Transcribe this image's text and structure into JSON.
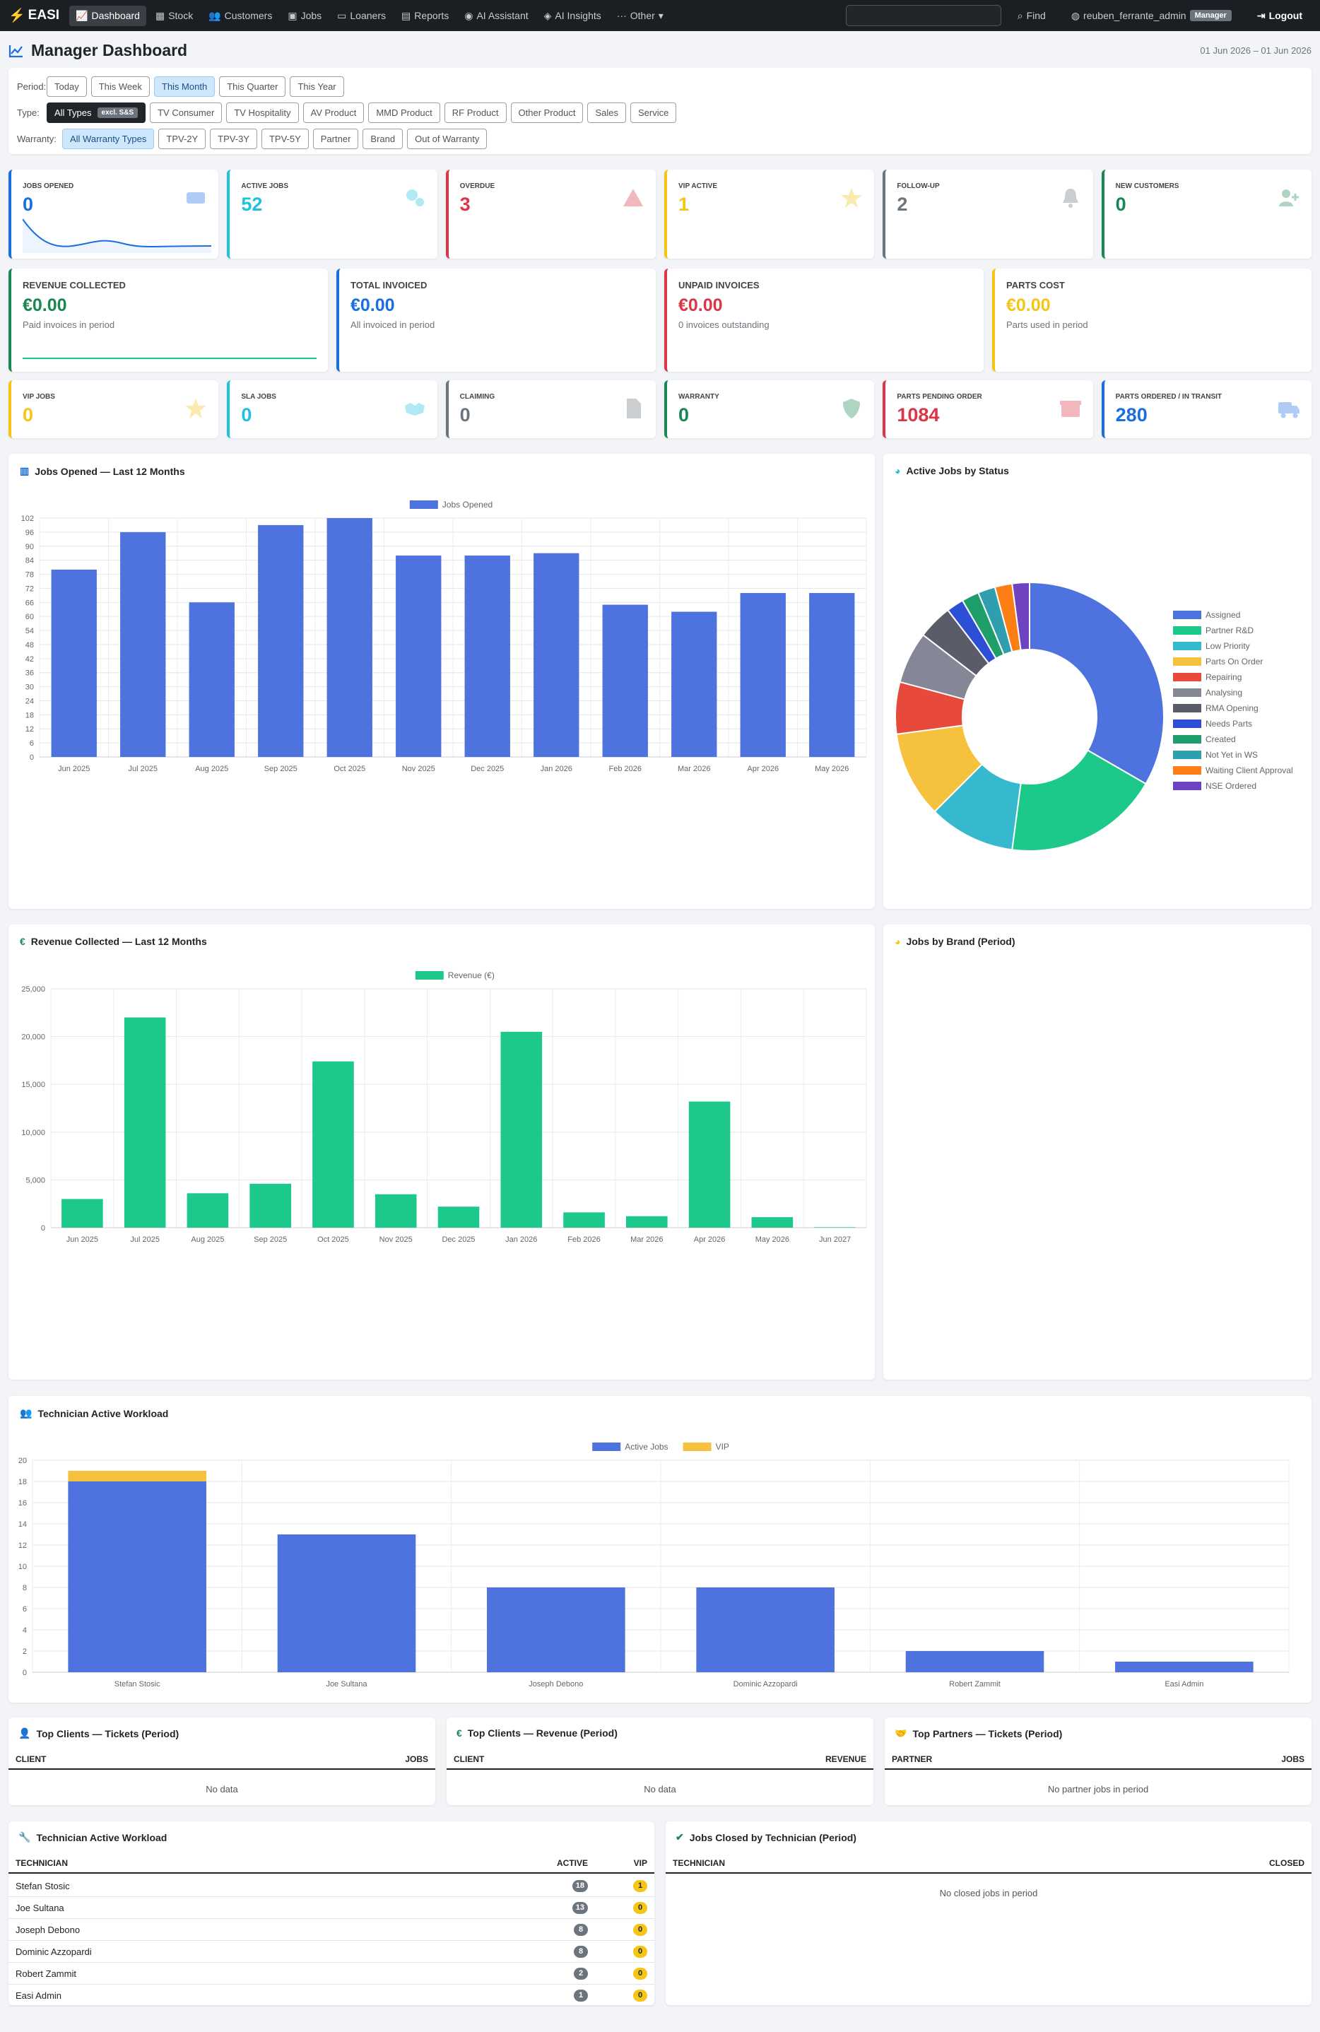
{
  "nav": {
    "brand": "EASI",
    "items": [
      "Dashboard",
      "Stock",
      "Customers",
      "Jobs",
      "Loaners",
      "Reports",
      "AI Assistant",
      "AI Insights",
      "Other"
    ],
    "find": "Find",
    "user": "reuben_ferrante_admin",
    "role": "Manager",
    "logout": "Logout"
  },
  "page": {
    "title": "Manager Dashboard",
    "daterange": "01 Jun 2026 – 01 Jun 2026"
  },
  "filters": {
    "period_label": "Period:",
    "periods": [
      "Today",
      "This Week",
      "This Month",
      "This Quarter",
      "This Year"
    ],
    "period_selected": "This Month",
    "type_label": "Type:",
    "types_all": "All Types",
    "types_all_badge": "excl. S&S",
    "types": [
      "TV Consumer",
      "TV Hospitality",
      "AV Product",
      "MMD Product",
      "RF Product",
      "Other Product",
      "Sales",
      "Service"
    ],
    "warranty_label": "Warranty:",
    "warranties": [
      "All Warranty Types",
      "TPV-2Y",
      "TPV-3Y",
      "TPV-5Y",
      "Partner",
      "Brand",
      "Out of Warranty"
    ],
    "warranty_selected": "All Warranty Types"
  },
  "stats_row1": [
    {
      "label": "Jobs Opened",
      "value": "0",
      "color": "#1a6fe0",
      "icon": "ticket-icon"
    },
    {
      "label": "Active Jobs",
      "value": "52",
      "color": "#1fc1de",
      "icon": "cogs-icon"
    },
    {
      "label": "Overdue",
      "value": "3",
      "color": "#dc3545",
      "icon": "warning-icon"
    },
    {
      "label": "VIP Active",
      "value": "1",
      "color": "#f5c518",
      "icon": "star-icon"
    },
    {
      "label": "Follow-Up",
      "value": "2",
      "color": "#6c757d",
      "icon": "bell-icon"
    },
    {
      "label": "New Customers",
      "value": "0",
      "color": "#198754",
      "icon": "user-plus-icon"
    }
  ],
  "stats_row2": [
    {
      "label": "Revenue Collected",
      "value": "€0.00",
      "sub": "Paid invoices in period",
      "color": "#198754"
    },
    {
      "label": "Total Invoiced",
      "value": "€0.00",
      "sub": "All invoiced in period",
      "color": "#1a6fe0"
    },
    {
      "label": "Unpaid Invoices",
      "value": "€0.00",
      "sub": "0 invoices outstanding",
      "color": "#dc3545"
    },
    {
      "label": "Parts Cost",
      "value": "€0.00",
      "sub": "Parts used in period",
      "color": "#f5c518"
    }
  ],
  "stats_row3": [
    {
      "label": "VIP Jobs",
      "value": "0",
      "color": "#f5c518",
      "icon": "star-icon"
    },
    {
      "label": "SLA Jobs",
      "value": "0",
      "color": "#1fc1de",
      "icon": "handshake-icon"
    },
    {
      "label": "Claiming",
      "value": "0",
      "color": "#6c757d",
      "icon": "document-icon"
    },
    {
      "label": "Warranty",
      "value": "0",
      "color": "#198754",
      "icon": "shield-icon"
    },
    {
      "label": "Parts Pending Order",
      "value": "1084",
      "color": "#dc3545",
      "icon": "box-icon"
    },
    {
      "label": "Parts Ordered / In Transit",
      "value": "280",
      "color": "#1a6fe0",
      "icon": "truck-icon"
    }
  ],
  "charts": {
    "jobs_title": "Jobs Opened — Last 12 Months",
    "status_title": "Active Jobs by Status",
    "revenue_title": "Revenue Collected — Last 12 Months",
    "brand_title": "Jobs by Brand (Period)",
    "workload_title": "Technician Active Workload"
  },
  "chart_data": [
    {
      "type": "bar",
      "title": "Jobs Opened — Last 12 Months",
      "categories": [
        "Jun 2025",
        "Jul 2025",
        "Aug 2025",
        "Sep 2025",
        "Oct 2025",
        "Nov 2025",
        "Dec 2025",
        "Jan 2026",
        "Feb 2026",
        "Mar 2026",
        "Apr 2026",
        "May 2026"
      ],
      "series": [
        {
          "name": "Jobs Opened",
          "values": [
            80,
            96,
            66,
            99,
            102,
            86,
            86,
            87,
            65,
            62,
            70,
            70
          ],
          "color": "#4e73df"
        }
      ],
      "ylim": [
        0,
        102
      ],
      "yticks": [
        0,
        6,
        12,
        18,
        24,
        30,
        36,
        42,
        48,
        54,
        60,
        66,
        72,
        78,
        84,
        90,
        96,
        102
      ],
      "legend": "top"
    },
    {
      "type": "pie",
      "title": "Active Jobs by Status",
      "labels": [
        "Assigned",
        "Partner R&D",
        "Low Priority",
        "Parts On Order",
        "Repairing",
        "Analysing",
        "RMA Opening",
        "Needs Parts",
        "Created",
        "Not Yet in WS",
        "Waiting Client Approval",
        "NSE Ordered"
      ],
      "values": [
        16,
        9,
        5,
        5,
        3,
        3,
        2,
        1,
        1,
        1,
        1,
        1
      ],
      "colors": [
        "#4e73df",
        "#1cc88a",
        "#36b9cc",
        "#f6c23e",
        "#e74a3b",
        "#858796",
        "#5a5c69",
        "#2c4fd6",
        "#1e9e6a",
        "#2f9faf",
        "#fd7e14",
        "#6f42c1"
      ],
      "legend": "right"
    },
    {
      "type": "bar",
      "title": "Revenue Collected — Last 12 Months",
      "categories": [
        "Jun 2025",
        "Jul 2025",
        "Aug 2025",
        "Sep 2025",
        "Oct 2025",
        "Nov 2025",
        "Dec 2025",
        "Jan 2026",
        "Feb 2026",
        "Mar 2026",
        "Apr 2026",
        "May 2026",
        "Jun 2027"
      ],
      "series": [
        {
          "name": "Revenue (€)",
          "values": [
            3000,
            22000,
            3600,
            4600,
            17400,
            3500,
            2200,
            20500,
            1600,
            1200,
            13200,
            1100,
            50
          ],
          "color": "#1cc88a"
        }
      ],
      "ylim": [
        0,
        25000
      ],
      "yticks": [
        "0",
        "5,000",
        "10,000",
        "15,000",
        "20,000",
        "25,000"
      ],
      "legend": "top"
    },
    {
      "type": "bar",
      "title": "Technician Active Workload",
      "categories": [
        "Stefan Stosic",
        "Joe Sultana",
        "Joseph Debono",
        "Dominic Azzopardi",
        "Robert Zammit",
        "Easi Admin"
      ],
      "series": [
        {
          "name": "Active Jobs",
          "values": [
            18,
            13,
            8,
            8,
            2,
            1
          ],
          "color": "#4e73df"
        },
        {
          "name": "VIP",
          "values": [
            1,
            0,
            0,
            0,
            0,
            0
          ],
          "color": "#f6c23e"
        }
      ],
      "stacked": true,
      "ylim": [
        0,
        20
      ],
      "yticks": [
        0,
        2,
        4,
        6,
        8,
        10,
        12,
        14,
        16,
        18,
        20
      ],
      "legend": "top"
    }
  ],
  "tables": {
    "top_clients_tickets": {
      "title": "Top Clients — Tickets (Period)",
      "col1": "CLIENT",
      "col2": "JOBS",
      "empty": "No data"
    },
    "top_clients_revenue": {
      "title": "Top Clients — Revenue (Period)",
      "col1": "CLIENT",
      "col2": "REVENUE",
      "empty": "No data"
    },
    "top_partners": {
      "title": "Top Partners — Tickets (Period)",
      "col1": "PARTNER",
      "col2": "JOBS",
      "empty": "No partner jobs in period"
    },
    "workload": {
      "title": "Technician Active Workload",
      "col1": "TECHNICIAN",
      "col2": "ACTIVE",
      "col3": "VIP",
      "rows": [
        {
          "name": "Stefan Stosic",
          "active": "18",
          "vip": "1"
        },
        {
          "name": "Joe Sultana",
          "active": "13",
          "vip": "0"
        },
        {
          "name": "Joseph Debono",
          "active": "8",
          "vip": "0"
        },
        {
          "name": "Dominic Azzopardi",
          "active": "8",
          "vip": "0"
        },
        {
          "name": "Robert Zammit",
          "active": "2",
          "vip": "0"
        },
        {
          "name": "Easi Admin",
          "active": "1",
          "vip": "0"
        }
      ]
    },
    "closed": {
      "title": "Jobs Closed by Technician (Period)",
      "col1": "TECHNICIAN",
      "col2": "CLOSED",
      "empty": "No closed jobs in period"
    }
  }
}
